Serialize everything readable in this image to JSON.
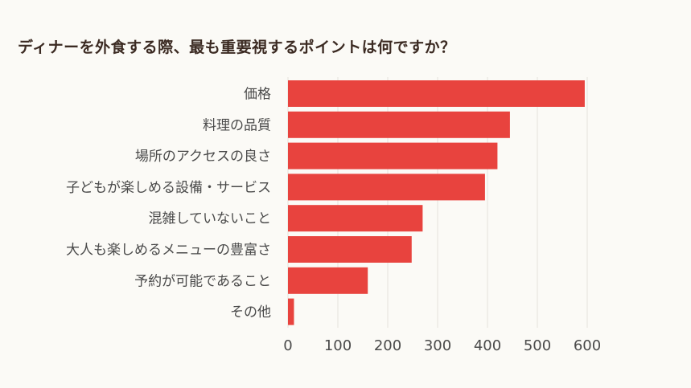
{
  "chart_data": {
    "type": "bar",
    "orientation": "horizontal",
    "title": "ディナーを外食する際、最も重要視するポイントは何ですか？",
    "categories": [
      "価格",
      "料理の品質",
      "場所のアクセスの良さ",
      "子どもが楽しめる設備・サービス",
      "混雑していないこと",
      "大人も楽しめるメニューの豊富さ",
      "予約が可能であること",
      "その他"
    ],
    "values": [
      595,
      445,
      420,
      395,
      270,
      248,
      160,
      12
    ],
    "xlim": [
      0,
      600
    ],
    "xticks": [
      "0",
      "100",
      "200",
      "300",
      "400",
      "500",
      "600"
    ],
    "grid": true,
    "bar_color": "#e8433e"
  }
}
